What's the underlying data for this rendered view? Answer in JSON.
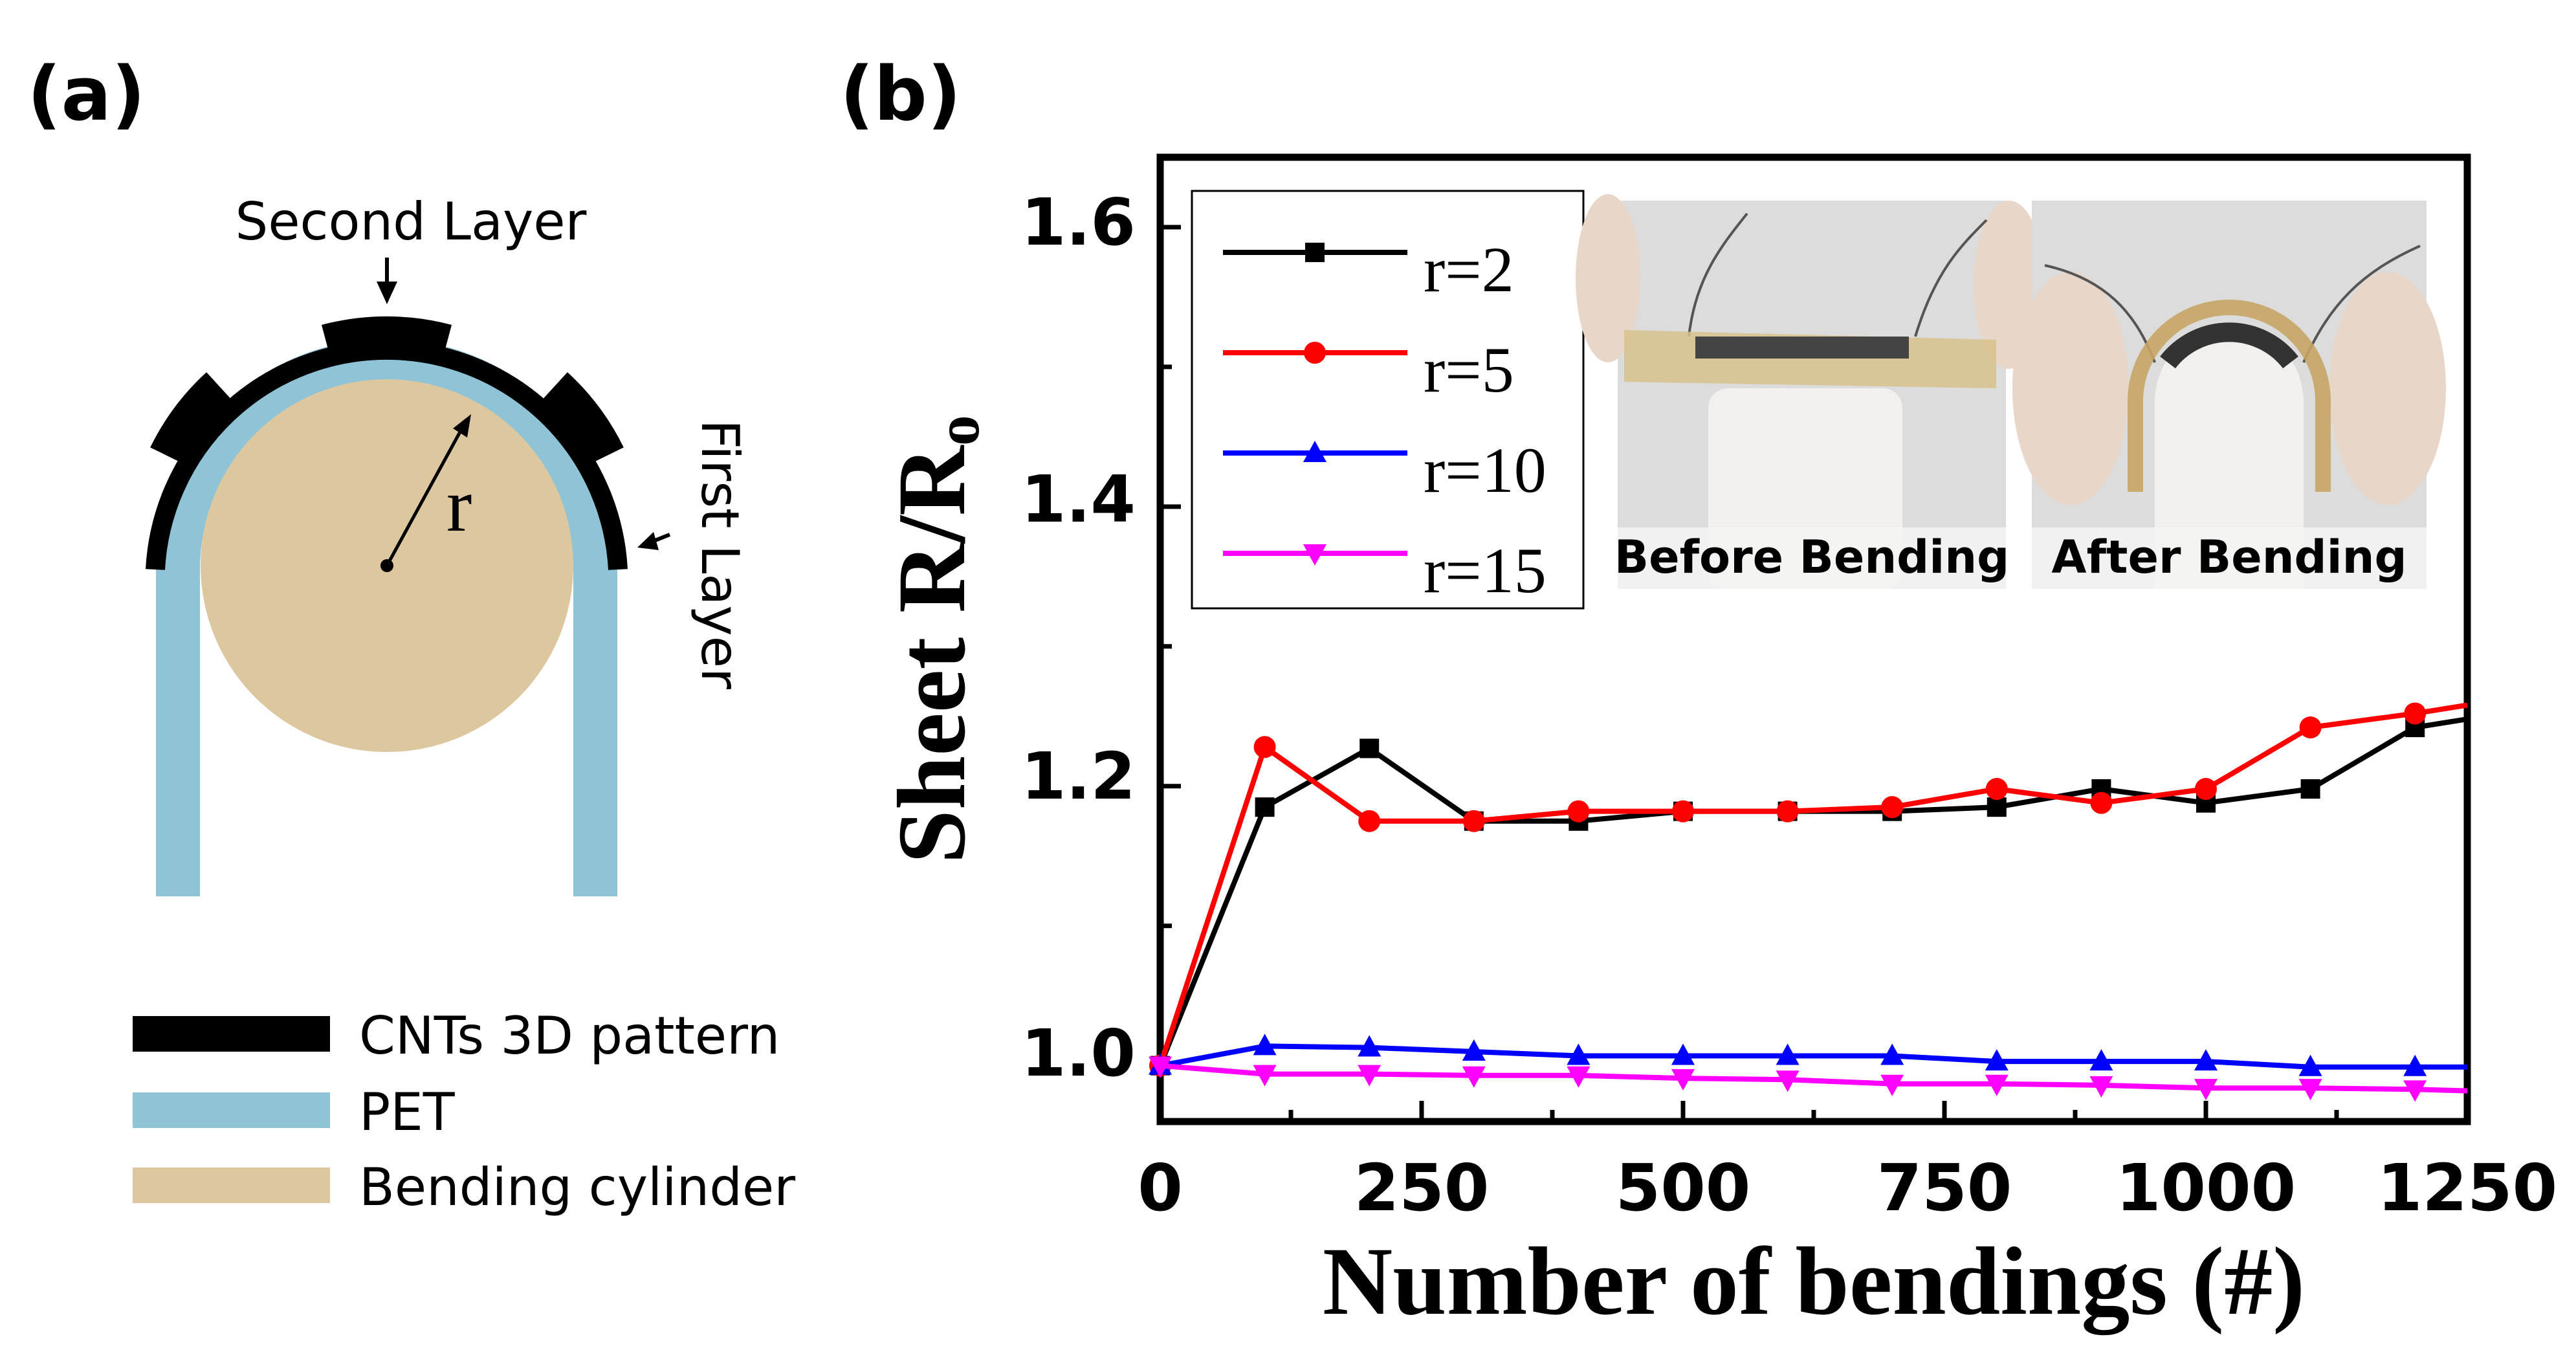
{
  "panel_a": {
    "label": "(a)",
    "radius_label": "r",
    "second_layer_label": "Second Layer",
    "first_layer_label": "First Layer",
    "legend": [
      {
        "label": "CNTs 3D pattern",
        "color": "#000000"
      },
      {
        "label": "PET",
        "color": "#8fc3d6"
      },
      {
        "label": "Bending cylinder",
        "color": "#dcc79f"
      }
    ]
  },
  "panel_b": {
    "label": "(b)",
    "photos": [
      {
        "caption": "Before Bending"
      },
      {
        "caption": "After Bending"
      }
    ]
  },
  "chart_data": {
    "type": "line",
    "title": "",
    "xlabel": "Number of bendings (#)",
    "ylabel": "Sheet R/R",
    "ylabel_subscript": "o",
    "xlim": [
      0,
      1250
    ],
    "ylim": [
      0.96,
      1.65
    ],
    "xticks": [
      0,
      250,
      500,
      750,
      1000,
      1250
    ],
    "yticks": [
      1.0,
      1.2,
      1.4,
      1.6
    ],
    "ytick_labels": [
      "1.0",
      "1.2",
      "1.4",
      "1.6"
    ],
    "grid": false,
    "legend_position": "top-left",
    "x": [
      0,
      100,
      200,
      300,
      400,
      500,
      600,
      700,
      800,
      900,
      1000,
      1100,
      1200,
      1250
    ],
    "series": [
      {
        "name": "r=2",
        "color": "#000000",
        "marker": "square",
        "values": [
          1.0,
          1.185,
          1.227,
          1.175,
          1.175,
          1.182,
          1.182,
          1.182,
          1.185,
          1.198,
          1.188,
          1.198,
          1.242,
          1.248
        ]
      },
      {
        "name": "r=5",
        "color": "#ff0000",
        "marker": "circle",
        "values": [
          1.0,
          1.228,
          1.175,
          1.175,
          1.182,
          1.182,
          1.182,
          1.185,
          1.198,
          1.188,
          1.198,
          1.242,
          1.252,
          1.258
        ]
      },
      {
        "name": "r=10",
        "color": "#0000ff",
        "marker": "triangle-up",
        "values": [
          1.0,
          1.014,
          1.013,
          1.01,
          1.007,
          1.007,
          1.007,
          1.007,
          1.003,
          1.003,
          1.003,
          0.999,
          0.999,
          0.999
        ]
      },
      {
        "name": "r=15",
        "color": "#ff00ff",
        "marker": "triangle-down",
        "values": [
          1.0,
          0.994,
          0.994,
          0.993,
          0.993,
          0.991,
          0.99,
          0.987,
          0.987,
          0.986,
          0.984,
          0.984,
          0.983,
          0.982
        ]
      }
    ]
  }
}
